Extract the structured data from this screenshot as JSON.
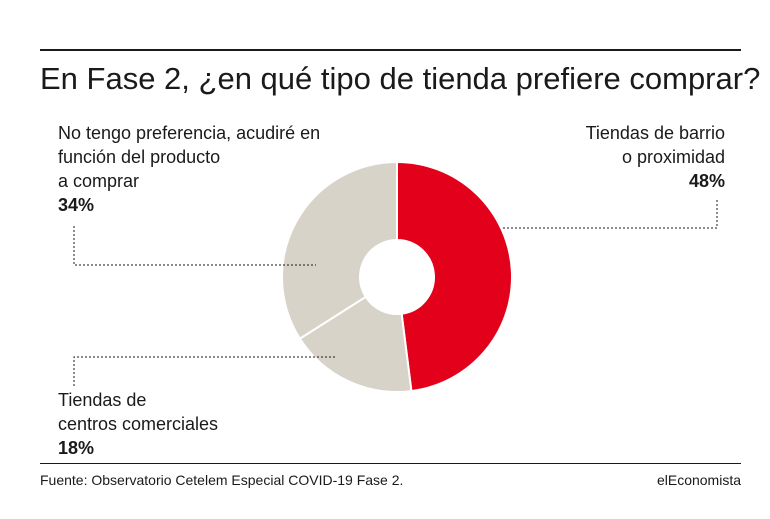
{
  "title": "En Fase 2, ¿en qué tipo de tienda prefiere comprar?",
  "source": "Fuente: Observatorio Cetelem Especial COVID-19 Fase 2.",
  "brand": "elEconomista",
  "colors": {
    "accent": "#e2001a",
    "neutral": "#d7d3c8",
    "text": "#1a1a1a"
  },
  "chart_data": {
    "type": "pie",
    "donut": true,
    "slices": [
      {
        "label_lines": [
          "Tiendas de barrio",
          "o proximidad"
        ],
        "label": "Tiendas de barrio o proximidad",
        "value": 48,
        "value_label": "48%",
        "color": "#e2001a"
      },
      {
        "label_lines": [
          "Tiendas de",
          "centros comerciales"
        ],
        "label": "Tiendas de centros comerciales",
        "value": 18,
        "value_label": "18%",
        "color": "#d7d3c8"
      },
      {
        "label_lines": [
          "No tengo preferencia, acudiré en",
          "función del producto",
          "a comprar"
        ],
        "label": "No tengo preferencia, acudiré en función del producto a comprar",
        "value": 34,
        "value_label": "34%",
        "color": "#d7d3c8"
      }
    ]
  }
}
